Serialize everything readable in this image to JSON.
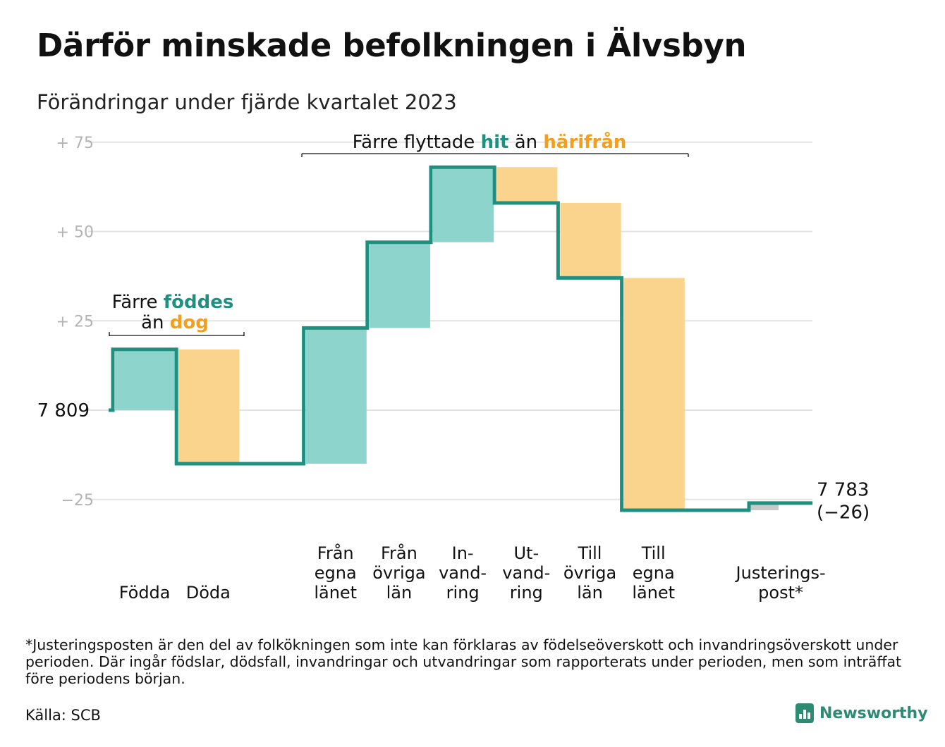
{
  "title": "Därför minskade befolkningen i Älvsbyn",
  "subtitle": "Förändringar under fjärde kvartalet 2023",
  "chart_data": {
    "type": "waterfall",
    "start_value": 7809,
    "start_label": "7  809",
    "end_value": 7783,
    "end_label_line1": "7 783",
    "end_label_line2": "(−26)",
    "ylim": [
      -30,
      78
    ],
    "y_ticks": [
      {
        "value": 75,
        "label": "+  75"
      },
      {
        "value": 50,
        "label": "+  50"
      },
      {
        "value": 25,
        "label": "+  25"
      },
      {
        "value": 0,
        "label": ""
      },
      {
        "value": -25,
        "label": "−25"
      }
    ],
    "grid": true,
    "colors": {
      "increase": "#8dd5cc",
      "decrease": "#fad38c",
      "adjustment": "#c8c8c8",
      "line": "#1f9080",
      "teal_text": "#1f9080",
      "orange_text": "#f29f1d",
      "grid": "#e3e3e3"
    },
    "categories": [
      {
        "id": "fodda",
        "label": [
          "Födda"
        ],
        "value": 17,
        "kind": "increase"
      },
      {
        "id": "doda",
        "label": [
          "Döda"
        ],
        "value": -32,
        "kind": "decrease"
      },
      {
        "id": "gap",
        "label": [],
        "value": 0,
        "kind": "gap"
      },
      {
        "id": "fran-egna-lanet",
        "label": [
          "Från",
          "egna",
          "länet"
        ],
        "value": 38,
        "kind": "increase"
      },
      {
        "id": "fran-ovriga-lan",
        "label": [
          "Från",
          "övriga",
          "län"
        ],
        "value": 24,
        "kind": "increase"
      },
      {
        "id": "invandring",
        "label": [
          "In-",
          "vand-",
          "ring"
        ],
        "value": 21,
        "kind": "increase"
      },
      {
        "id": "utvandring",
        "label": [
          "Ut-",
          "vand-",
          "ring"
        ],
        "value": -10,
        "kind": "decrease"
      },
      {
        "id": "till-ovriga-lan",
        "label": [
          "Till",
          "övriga",
          "län"
        ],
        "value": -21,
        "kind": "decrease"
      },
      {
        "id": "till-egna-lanet",
        "label": [
          "Till",
          "egna",
          "länet"
        ],
        "value": -65,
        "kind": "decrease"
      },
      {
        "id": "gap2",
        "label": [],
        "value": 0,
        "kind": "gap"
      },
      {
        "id": "justeringspost",
        "label": [
          "Justerings-",
          "post*"
        ],
        "value": 2,
        "kind": "adjustment"
      }
    ],
    "annotations": {
      "births": {
        "pre": "Färre ",
        "teal": "föddes",
        "line2_pre": "än ",
        "orange": "dog"
      },
      "migration": {
        "pre": "Färre flyttade ",
        "teal": "hit",
        "mid": " än ",
        "orange": "härifrån"
      }
    }
  },
  "footnote": "*Justeringsposten är den del av folkökningen som inte kan förklaras av födelseöverskott och invandringsöverskott under perioden. Där ingår födslar, dödsfall, invandringar och utvandringar som rapporterats under perioden, men som inträffat före periodens början.",
  "source": "Källa: SCB",
  "brand": "Newsworthy"
}
